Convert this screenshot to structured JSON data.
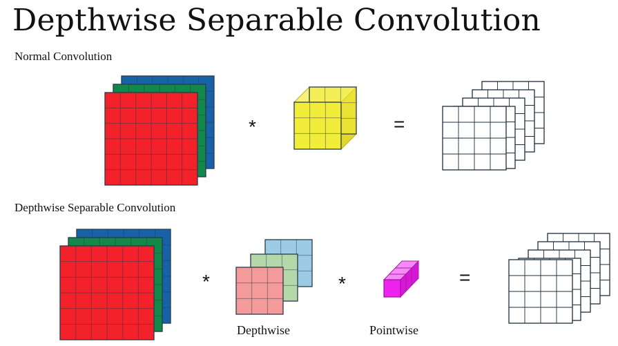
{
  "title": "Depthwise Separable Convolution",
  "sections": {
    "normal": "Normal Convolution",
    "separable": "Depthwise Separable Convolution"
  },
  "operators": {
    "multiply": "*",
    "equals": "="
  },
  "captions": {
    "depthwise": "Depthwise",
    "pointwise": "Pointwise"
  },
  "colors": {
    "red": "#f2212a",
    "green": "#12884a",
    "blue": "#1862a8",
    "yellow": "#f2ec3a",
    "yellow_side": "#e0d82a",
    "pink": "#f49a9a",
    "light_green": "#b4d8a8",
    "light_blue": "#9ccbe6",
    "magenta": "#ee22ee",
    "grid_line": "#2a3a4a"
  }
}
